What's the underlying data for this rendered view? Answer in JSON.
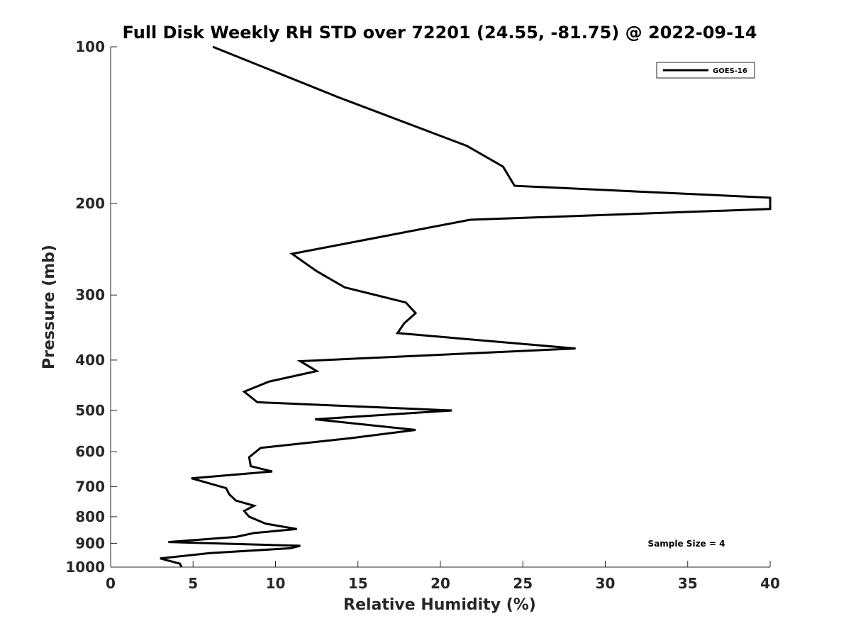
{
  "chart_data": {
    "type": "line",
    "title": "Full Disk Weekly RH STD over 72201 (24.55, -81.75) @ 2022-09-14",
    "xlabel": "Relative Humidity (%)",
    "ylabel": "Pressure (mb)",
    "xlim": [
      0,
      40
    ],
    "ylim": [
      100,
      1000
    ],
    "yscale": "log",
    "y_reversed": true,
    "xticks": [
      0,
      5,
      10,
      15,
      20,
      25,
      30,
      35,
      40
    ],
    "yticks": [
      100,
      200,
      300,
      400,
      500,
      600,
      700,
      800,
      900,
      1000
    ],
    "grid": false,
    "legend": {
      "entries": [
        "GOES-16"
      ],
      "placement": "top-right"
    },
    "annotation": "Sample Size = 4",
    "series": [
      {
        "name": "GOES-16",
        "color": "#000000",
        "points": [
          [
            6.2,
            100
          ],
          [
            13.8,
            125
          ],
          [
            21.6,
            155
          ],
          [
            23.8,
            170
          ],
          [
            24.5,
            185
          ],
          [
            40.0,
            195
          ],
          [
            40.0,
            205
          ],
          [
            21.8,
            215
          ],
          [
            11.0,
            250
          ],
          [
            12.5,
            270
          ],
          [
            14.2,
            290
          ],
          [
            17.9,
            310
          ],
          [
            18.5,
            325
          ],
          [
            17.8,
            340
          ],
          [
            17.4,
            355
          ],
          [
            28.2,
            380
          ],
          [
            11.5,
            402
          ],
          [
            12.5,
            420
          ],
          [
            9.6,
            440
          ],
          [
            8.1,
            460
          ],
          [
            8.9,
            482
          ],
          [
            20.7,
            500
          ],
          [
            12.4,
            520
          ],
          [
            18.5,
            545
          ],
          [
            14.6,
            565
          ],
          [
            9.1,
            590
          ],
          [
            8.4,
            615
          ],
          [
            8.5,
            640
          ],
          [
            9.8,
            655
          ],
          [
            4.9,
            675
          ],
          [
            7.0,
            705
          ],
          [
            7.2,
            725
          ],
          [
            7.6,
            745
          ],
          [
            8.7,
            762
          ],
          [
            8.1,
            780
          ],
          [
            8.4,
            800
          ],
          [
            9.4,
            825
          ],
          [
            11.3,
            845
          ],
          [
            8.7,
            860
          ],
          [
            7.6,
            875
          ],
          [
            3.5,
            895
          ],
          [
            11.5,
            910
          ],
          [
            10.9,
            920
          ],
          [
            6.0,
            940
          ],
          [
            3.0,
            962
          ],
          [
            4.2,
            985
          ],
          [
            4.3,
            1000
          ]
        ]
      }
    ]
  }
}
